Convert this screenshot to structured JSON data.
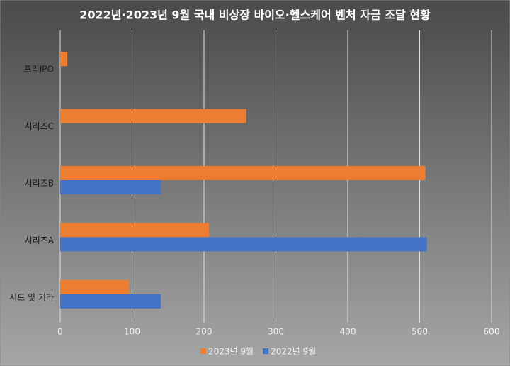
{
  "chart_data": {
    "type": "hbar",
    "title": "2022년·2023년 9월 국내 비상장 바이오·헬스케어 벤처 자금 조달 현황",
    "categories": [
      "프리IPO",
      "시리즈C",
      "시리즈B",
      "시리즈A",
      "시드 및 기타"
    ],
    "series": [
      {
        "name": "2023년 9월",
        "color": "#ed7d31",
        "values": [
          10,
          259,
          508,
          207,
          96
        ]
      },
      {
        "name": "2022년 9월",
        "color": "#4472c4",
        "values": [
          null,
          null,
          140,
          510,
          140
        ]
      }
    ],
    "xlim": [
      0,
      600
    ],
    "xticks": [
      0,
      100,
      200,
      300,
      400,
      500,
      600
    ],
    "grid": true,
    "legend": "bottom"
  }
}
